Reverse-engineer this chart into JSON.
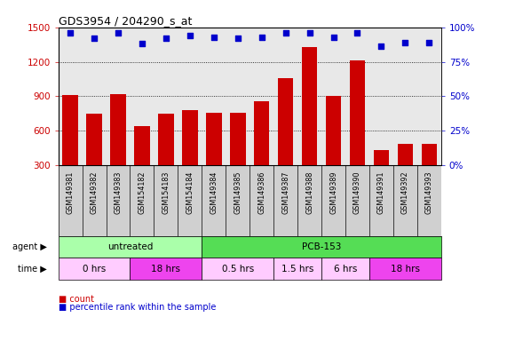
{
  "title": "GDS3954 / 204290_s_at",
  "samples": [
    "GSM149381",
    "GSM149382",
    "GSM149383",
    "GSM154182",
    "GSM154183",
    "GSM154184",
    "GSM149384",
    "GSM149385",
    "GSM149386",
    "GSM149387",
    "GSM149388",
    "GSM149389",
    "GSM149390",
    "GSM149391",
    "GSM149392",
    "GSM149393"
  ],
  "counts": [
    910,
    745,
    920,
    640,
    750,
    780,
    760,
    760,
    855,
    1060,
    1330,
    905,
    1210,
    430,
    490,
    490
  ],
  "percentile_ranks": [
    96,
    92,
    96,
    88,
    92,
    94,
    93,
    92,
    93,
    96,
    96,
    93,
    96,
    86,
    89,
    89
  ],
  "bar_color": "#cc0000",
  "dot_color": "#0000cc",
  "ylim_left": [
    300,
    1500
  ],
  "ylim_right": [
    0,
    100
  ],
  "yticks_left": [
    300,
    600,
    900,
    1200,
    1500
  ],
  "yticks_right": [
    0,
    25,
    50,
    75,
    100
  ],
  "agent_labels": [
    {
      "text": "untreated",
      "start": 0,
      "end": 6,
      "color": "#aaffaa"
    },
    {
      "text": "PCB-153",
      "start": 6,
      "end": 16,
      "color": "#55dd55"
    }
  ],
  "time_labels": [
    {
      "text": "0 hrs",
      "start": 0,
      "end": 3,
      "color": "#ffccff"
    },
    {
      "text": "18 hrs",
      "start": 3,
      "end": 6,
      "color": "#ee44ee"
    },
    {
      "text": "0.5 hrs",
      "start": 6,
      "end": 9,
      "color": "#ffccff"
    },
    {
      "text": "1.5 hrs",
      "start": 9,
      "end": 11,
      "color": "#ffccff"
    },
    {
      "text": "6 hrs",
      "start": 11,
      "end": 13,
      "color": "#ffccff"
    },
    {
      "text": "18 hrs",
      "start": 13,
      "end": 16,
      "color": "#ee44ee"
    }
  ],
  "legend_count_color": "#cc0000",
  "legend_dot_color": "#0000cc",
  "background_color": "#ffffff",
  "tick_label_color_left": "#cc0000",
  "tick_label_color_right": "#0000cc",
  "chart_bg": "#e8e8e8",
  "xticklabel_bg": "#d0d0d0"
}
